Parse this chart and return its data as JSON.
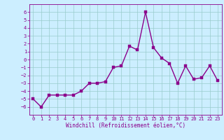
{
  "x": [
    0,
    1,
    2,
    3,
    4,
    5,
    6,
    7,
    8,
    9,
    10,
    11,
    12,
    13,
    14,
    15,
    16,
    17,
    18,
    19,
    20,
    21,
    22,
    23
  ],
  "y": [
    -5.0,
    -6.0,
    -4.5,
    -4.5,
    -4.5,
    -4.5,
    -4.0,
    -3.0,
    -3.0,
    -2.8,
    -1.0,
    -0.8,
    1.7,
    1.2,
    6.0,
    1.5,
    0.2,
    -0.5,
    -3.0,
    -0.8,
    -2.5,
    -2.3,
    -0.8,
    -2.7
  ],
  "line_color": "#8b008b",
  "marker_color": "#8b008b",
  "bg_color": "#cceeff",
  "grid_color": "#99cccc",
  "xlabel": "Windchill (Refroidissement éolien,°C)",
  "xlabel_color": "#8b008b",
  "tick_color": "#8b008b",
  "spine_color": "#8b008b",
  "ylim": [
    -7,
    7
  ],
  "yticks": [
    -6,
    -5,
    -4,
    -3,
    -2,
    -1,
    0,
    1,
    2,
    3,
    4,
    5,
    6
  ],
  "xticks": [
    0,
    1,
    2,
    3,
    4,
    5,
    6,
    7,
    8,
    9,
    10,
    11,
    12,
    13,
    14,
    15,
    16,
    17,
    18,
    19,
    20,
    21,
    22,
    23
  ],
  "marker_size": 2.5,
  "line_width": 1.0,
  "tick_fontsize": 5.0,
  "xlabel_fontsize": 5.5
}
